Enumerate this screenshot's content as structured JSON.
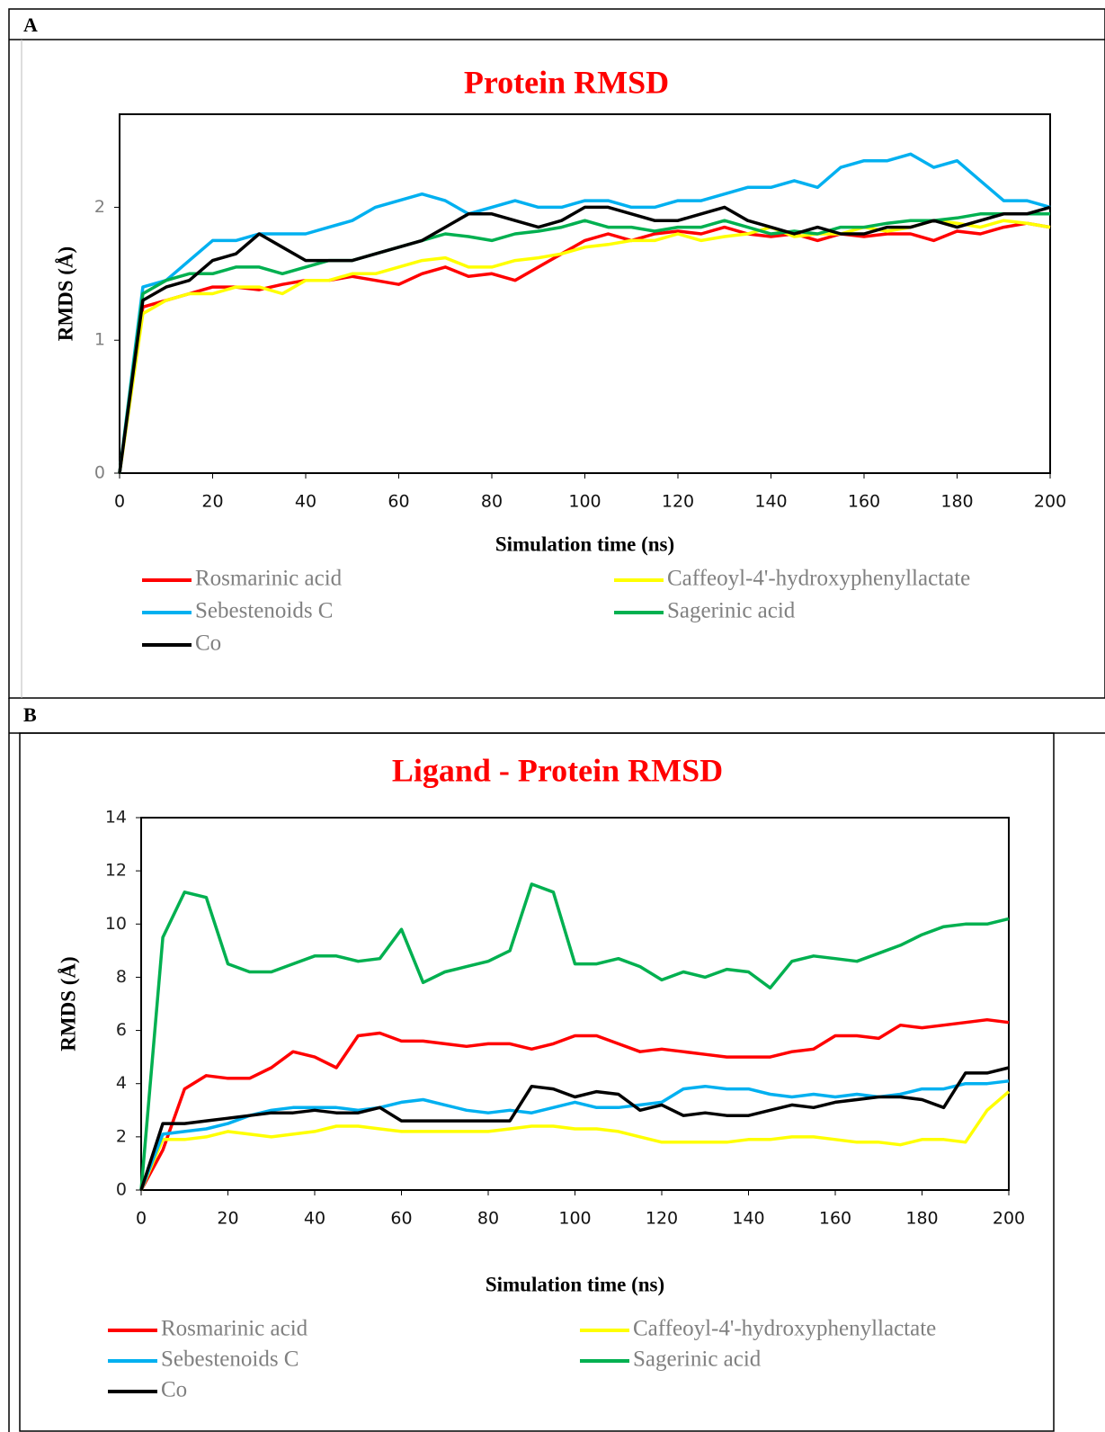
{
  "panel_labels": [
    "A",
    "B"
  ],
  "chart_data": [
    {
      "type": "line",
      "title": "Protein RMSD",
      "x_label": "Simulation time (ns)",
      "y_label": "RMDS (Å)",
      "x": [
        0,
        5,
        10,
        15,
        20,
        25,
        30,
        35,
        40,
        45,
        50,
        55,
        60,
        65,
        70,
        75,
        80,
        85,
        90,
        95,
        100,
        105,
        110,
        115,
        120,
        125,
        130,
        135,
        140,
        145,
        150,
        155,
        160,
        165,
        170,
        175,
        180,
        185,
        190,
        195,
        200
      ],
      "xlim": [
        0,
        200
      ],
      "xticks": [
        0,
        20,
        40,
        60,
        80,
        100,
        120,
        140,
        160,
        180,
        200
      ],
      "ylim": [
        0,
        2.7
      ],
      "yticks": [
        0,
        1,
        2
      ],
      "series": [
        {
          "name": "Rosmarinic acid",
          "color": "#ff0000",
          "values": [
            0,
            1.25,
            1.3,
            1.35,
            1.4,
            1.4,
            1.38,
            1.42,
            1.45,
            1.45,
            1.48,
            1.45,
            1.42,
            1.5,
            1.55,
            1.48,
            1.5,
            1.45,
            1.55,
            1.65,
            1.75,
            1.8,
            1.75,
            1.8,
            1.82,
            1.8,
            1.85,
            1.8,
            1.78,
            1.8,
            1.75,
            1.8,
            1.78,
            1.8,
            1.8,
            1.75,
            1.82,
            1.8,
            1.85,
            1.88,
            1.85
          ]
        },
        {
          "name": "Caffeoyl-4'-hydroxyphenyllactate",
          "color": "#ffff00",
          "values": [
            0,
            1.2,
            1.3,
            1.35,
            1.35,
            1.4,
            1.4,
            1.35,
            1.45,
            1.45,
            1.5,
            1.5,
            1.55,
            1.6,
            1.62,
            1.55,
            1.55,
            1.6,
            1.62,
            1.65,
            1.7,
            1.72,
            1.75,
            1.75,
            1.8,
            1.75,
            1.78,
            1.8,
            1.85,
            1.78,
            1.8,
            1.8,
            1.85,
            1.82,
            1.85,
            1.9,
            1.88,
            1.85,
            1.9,
            1.88,
            1.85
          ]
        },
        {
          "name": "Sebestenoids C",
          "color": "#00b0f0",
          "values": [
            0,
            1.4,
            1.45,
            1.6,
            1.75,
            1.75,
            1.8,
            1.8,
            1.8,
            1.85,
            1.9,
            2.0,
            2.05,
            2.1,
            2.05,
            1.95,
            2.0,
            2.05,
            2.0,
            2.0,
            2.05,
            2.05,
            2.0,
            2.0,
            2.05,
            2.05,
            2.1,
            2.15,
            2.15,
            2.2,
            2.15,
            2.3,
            2.35,
            2.35,
            2.4,
            2.3,
            2.35,
            2.2,
            2.05,
            2.05,
            2.0
          ]
        },
        {
          "name": "Sagerinic acid",
          "color": "#00b050",
          "values": [
            0,
            1.35,
            1.45,
            1.5,
            1.5,
            1.55,
            1.55,
            1.5,
            1.55,
            1.6,
            1.6,
            1.65,
            1.7,
            1.75,
            1.8,
            1.78,
            1.75,
            1.8,
            1.82,
            1.85,
            1.9,
            1.85,
            1.85,
            1.82,
            1.85,
            1.85,
            1.9,
            1.85,
            1.8,
            1.82,
            1.8,
            1.85,
            1.85,
            1.88,
            1.9,
            1.9,
            1.92,
            1.95,
            1.95,
            1.95,
            1.95
          ]
        },
        {
          "name": "Co",
          "color": "#000000",
          "values": [
            0,
            1.3,
            1.4,
            1.45,
            1.6,
            1.65,
            1.8,
            1.7,
            1.6,
            1.6,
            1.6,
            1.65,
            1.7,
            1.75,
            1.85,
            1.95,
            1.95,
            1.9,
            1.85,
            1.9,
            2.0,
            2.0,
            1.95,
            1.9,
            1.9,
            1.95,
            2.0,
            1.9,
            1.85,
            1.8,
            1.85,
            1.8,
            1.8,
            1.85,
            1.85,
            1.9,
            1.85,
            1.9,
            1.95,
            1.95,
            2.0
          ]
        }
      ]
    },
    {
      "type": "line",
      "title": "Ligand - Protein RMSD",
      "x_label": "Simulation time (ns)",
      "y_label": "RMDS (Å)",
      "x": [
        0,
        5,
        10,
        15,
        20,
        25,
        30,
        35,
        40,
        45,
        50,
        55,
        60,
        65,
        70,
        75,
        80,
        85,
        90,
        95,
        100,
        105,
        110,
        115,
        120,
        125,
        130,
        135,
        140,
        145,
        150,
        155,
        160,
        165,
        170,
        175,
        180,
        185,
        190,
        195,
        200
      ],
      "xlim": [
        0,
        200
      ],
      "xticks": [
        0,
        20,
        40,
        60,
        80,
        100,
        120,
        140,
        160,
        180,
        200
      ],
      "ylim": [
        0,
        14
      ],
      "yticks": [
        0,
        2,
        4,
        6,
        8,
        10,
        12,
        14
      ],
      "series": [
        {
          "name": "Rosmarinic acid",
          "color": "#ff0000",
          "values": [
            0,
            1.5,
            3.8,
            4.3,
            4.2,
            4.2,
            4.6,
            5.2,
            5.0,
            4.6,
            5.8,
            5.9,
            5.6,
            5.6,
            5.5,
            5.4,
            5.5,
            5.5,
            5.3,
            5.5,
            5.8,
            5.8,
            5.5,
            5.2,
            5.3,
            5.2,
            5.1,
            5.0,
            5.0,
            5.0,
            5.2,
            5.3,
            5.8,
            5.8,
            5.7,
            6.2,
            6.1,
            6.2,
            6.3,
            6.4,
            6.3
          ]
        },
        {
          "name": "Caffeoyl-4'-hydroxyphenyllactate",
          "color": "#ffff00",
          "values": [
            0,
            1.9,
            1.9,
            2.0,
            2.2,
            2.1,
            2.0,
            2.1,
            2.2,
            2.4,
            2.4,
            2.3,
            2.2,
            2.2,
            2.2,
            2.2,
            2.2,
            2.3,
            2.4,
            2.4,
            2.3,
            2.3,
            2.2,
            2.0,
            1.8,
            1.8,
            1.8,
            1.8,
            1.9,
            1.9,
            2.0,
            2.0,
            1.9,
            1.8,
            1.8,
            1.7,
            1.9,
            1.9,
            1.8,
            3.0,
            3.7
          ]
        },
        {
          "name": "Sebestenoids C",
          "color": "#00b0f0",
          "values": [
            0,
            2.1,
            2.2,
            2.3,
            2.5,
            2.8,
            3.0,
            3.1,
            3.1,
            3.1,
            3.0,
            3.1,
            3.3,
            3.4,
            3.2,
            3.0,
            2.9,
            3.0,
            2.9,
            3.1,
            3.3,
            3.1,
            3.1,
            3.2,
            3.3,
            3.8,
            3.9,
            3.8,
            3.8,
            3.6,
            3.5,
            3.6,
            3.5,
            3.6,
            3.5,
            3.6,
            3.8,
            3.8,
            4.0,
            4.0,
            4.1
          ]
        },
        {
          "name": "Sagerinic acid",
          "color": "#00b050",
          "values": [
            0,
            9.5,
            11.2,
            11.0,
            8.5,
            8.2,
            8.2,
            8.5,
            8.8,
            8.8,
            8.6,
            8.7,
            9.8,
            7.8,
            8.2,
            8.4,
            8.6,
            9.0,
            11.5,
            11.2,
            8.5,
            8.5,
            8.7,
            8.4,
            7.9,
            8.2,
            8.0,
            8.3,
            8.2,
            7.6,
            8.6,
            8.8,
            8.7,
            8.6,
            8.9,
            9.2,
            9.6,
            9.9,
            10.0,
            10.0,
            10.2
          ]
        },
        {
          "name": "Co",
          "color": "#000000",
          "values": [
            0,
            2.5,
            2.5,
            2.6,
            2.7,
            2.8,
            2.9,
            2.9,
            3.0,
            2.9,
            2.9,
            3.1,
            2.6,
            2.6,
            2.6,
            2.6,
            2.6,
            2.6,
            3.9,
            3.8,
            3.5,
            3.7,
            3.6,
            3.0,
            3.2,
            2.8,
            2.9,
            2.8,
            2.8,
            3.0,
            3.2,
            3.1,
            3.3,
            3.4,
            3.5,
            3.5,
            3.4,
            3.1,
            4.4,
            4.4,
            4.6
          ]
        }
      ]
    }
  ]
}
